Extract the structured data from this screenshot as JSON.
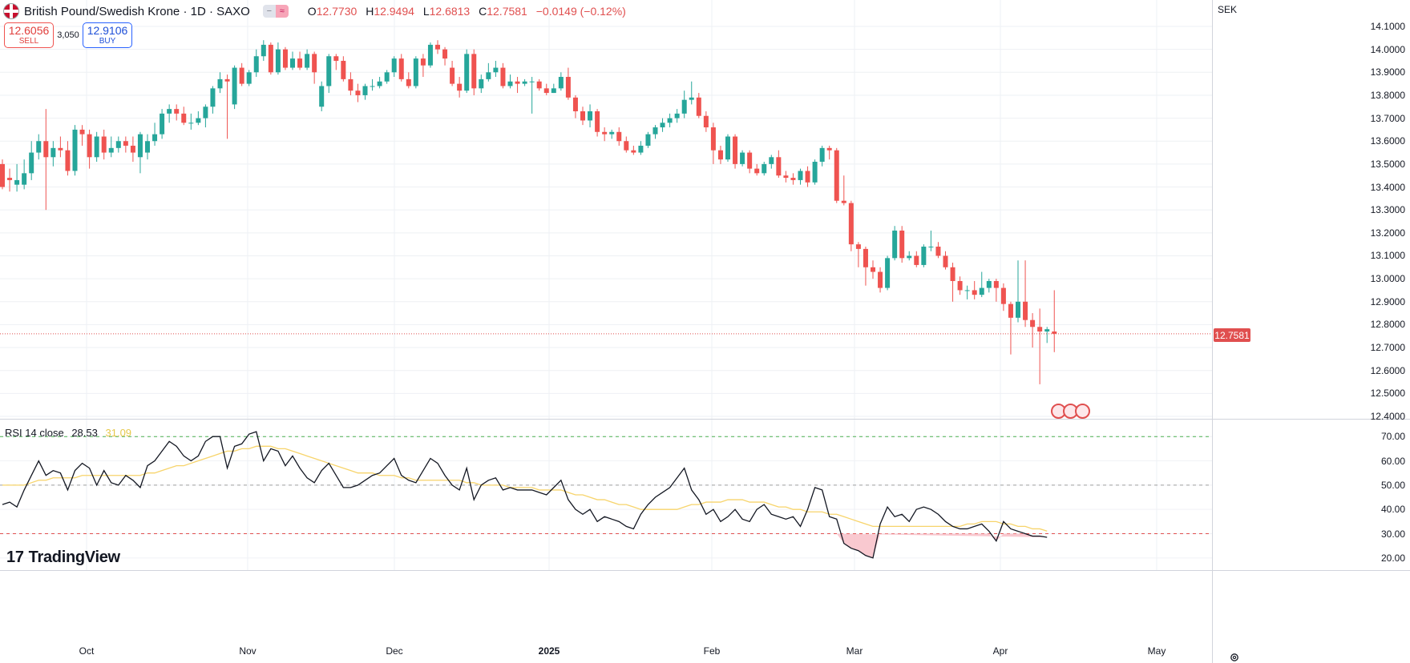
{
  "header": {
    "symbol": "British Pound/Swedish Krone · 1D · SAXO",
    "ohlc": [
      {
        "label": "O",
        "value": "12.7730"
      },
      {
        "label": "H",
        "value": "12.9494"
      },
      {
        "label": "L",
        "value": "12.6813"
      },
      {
        "label": "C",
        "value": "12.7581"
      }
    ],
    "change": "−0.0149 (−0.12%)",
    "pill_left": "−",
    "pill_right": "≈"
  },
  "trade": {
    "sell_price": "12.6056",
    "sell_label": "SELL",
    "spread": "3,050",
    "buy_price": "12.9106",
    "buy_label": "BUY"
  },
  "currency": "SEK",
  "last_price_tag": "12.7581",
  "rsi_header": {
    "label": "RSI 14 close",
    "value": "28.53",
    "ma_value": "31.09"
  },
  "brand": {
    "name": "TradingView",
    "mark": "17"
  },
  "colors": {
    "up": "#26a69a",
    "down": "#ef5350",
    "rsi_line": "#131722",
    "rsi_ma": "#f7d46b",
    "oversold_fill": "#f8bbc4"
  },
  "icons": [
    "flag-icon",
    "gear-icon",
    "event-icon"
  ],
  "chart_data": [
    {
      "type": "candlestick",
      "title": "British Pound/Swedish Krone · 1D · SAXO",
      "y_ticks": [
        "14.1000",
        "14.0000",
        "13.9000",
        "13.8000",
        "13.7000",
        "13.6000",
        "13.5000",
        "13.4000",
        "13.3000",
        "13.2000",
        "13.1000",
        "13.0000",
        "12.9000",
        "12.8000",
        "12.7000",
        "12.6000",
        "12.5000",
        "12.4000"
      ],
      "y_range": [
        12.4,
        14.1
      ],
      "x_ticks": [
        "Oct",
        "Nov",
        "Dec",
        "2025",
        "Feb",
        "Mar",
        "Apr",
        "May"
      ],
      "candles": [
        [
          13.5,
          13.4,
          13.52,
          13.39
        ],
        [
          13.44,
          13.43,
          13.48,
          13.38
        ],
        [
          13.41,
          13.43,
          13.5,
          13.38
        ],
        [
          13.41,
          13.46,
          13.52,
          13.39
        ],
        [
          13.46,
          13.55,
          13.6,
          13.43
        ],
        [
          13.55,
          13.6,
          13.63,
          13.52
        ],
        [
          13.6,
          13.53,
          13.74,
          13.3
        ],
        [
          13.53,
          13.57,
          13.6,
          13.49
        ],
        [
          13.57,
          13.56,
          13.62,
          13.53
        ],
        [
          13.56,
          13.47,
          13.6,
          13.45
        ],
        [
          13.47,
          13.65,
          13.67,
          13.45
        ],
        [
          13.65,
          13.63,
          13.67,
          13.58
        ],
        [
          13.63,
          13.53,
          13.65,
          13.48
        ],
        [
          13.53,
          13.62,
          13.64,
          13.51
        ],
        [
          13.62,
          13.55,
          13.65,
          13.52
        ],
        [
          13.55,
          13.57,
          13.62,
          13.53
        ],
        [
          13.57,
          13.6,
          13.62,
          13.55
        ],
        [
          13.6,
          13.58,
          13.62,
          13.55
        ],
        [
          13.58,
          13.55,
          13.62,
          13.51
        ],
        [
          13.53,
          13.63,
          13.64,
          13.46
        ],
        [
          13.55,
          13.6,
          13.63,
          13.52
        ],
        [
          13.6,
          13.63,
          13.68,
          13.58
        ],
        [
          13.63,
          13.72,
          13.74,
          13.61
        ],
        [
          13.72,
          13.74,
          13.76,
          13.68
        ],
        [
          13.74,
          13.72,
          13.76,
          13.69
        ],
        [
          13.72,
          13.68,
          13.75,
          13.67
        ],
        [
          13.68,
          13.68,
          13.72,
          13.65
        ],
        [
          13.68,
          13.7,
          13.73,
          13.67
        ],
        [
          13.7,
          13.75,
          13.76,
          13.66
        ],
        [
          13.75,
          13.83,
          13.84,
          13.72
        ],
        [
          13.83,
          13.87,
          13.9,
          13.81
        ],
        [
          13.87,
          13.86,
          13.89,
          13.61
        ],
        [
          13.76,
          13.92,
          13.93,
          13.74
        ],
        [
          13.92,
          13.85,
          13.94,
          13.84
        ],
        [
          13.85,
          13.9,
          13.91,
          13.84
        ],
        [
          13.9,
          13.97,
          14.0,
          13.88
        ],
        [
          13.97,
          14.02,
          14.04,
          13.95
        ],
        [
          14.02,
          13.9,
          14.03,
          13.89
        ],
        [
          13.9,
          14.0,
          14.03,
          13.89
        ],
        [
          14.0,
          13.92,
          14.01,
          13.91
        ],
        [
          13.92,
          13.96,
          13.99,
          13.91
        ],
        [
          13.96,
          13.92,
          13.99,
          13.91
        ],
        [
          13.92,
          13.98,
          14.0,
          13.91
        ],
        [
          13.98,
          13.9,
          13.99,
          13.85
        ],
        [
          13.75,
          13.84,
          13.86,
          13.73
        ],
        [
          13.84,
          13.97,
          13.98,
          13.81
        ],
        [
          13.97,
          13.95,
          13.98,
          13.91
        ],
        [
          13.95,
          13.87,
          13.97,
          13.86
        ],
        [
          13.87,
          13.82,
          13.9,
          13.8
        ],
        [
          13.82,
          13.8,
          13.85,
          13.77
        ],
        [
          13.8,
          13.84,
          13.85,
          13.78
        ],
        [
          13.84,
          13.84,
          13.87,
          13.82
        ],
        [
          13.84,
          13.86,
          13.88,
          13.83
        ],
        [
          13.86,
          13.9,
          13.91,
          13.85
        ],
        [
          13.9,
          13.96,
          13.97,
          13.88
        ],
        [
          13.96,
          13.87,
          13.98,
          13.86
        ],
        [
          13.87,
          13.84,
          13.9,
          13.83
        ],
        [
          13.84,
          13.96,
          13.97,
          13.83
        ],
        [
          13.96,
          13.93,
          13.98,
          13.88
        ],
        [
          13.93,
          14.02,
          14.03,
          13.92
        ],
        [
          14.02,
          14.0,
          14.04,
          13.98
        ],
        [
          14.0,
          13.96,
          14.01,
          13.93
        ],
        [
          13.92,
          13.85,
          13.95,
          13.84
        ],
        [
          13.85,
          13.82,
          13.88,
          13.79
        ],
        [
          13.82,
          13.98,
          14.0,
          13.81
        ],
        [
          13.98,
          13.83,
          14.0,
          13.8
        ],
        [
          13.83,
          13.87,
          13.89,
          13.81
        ],
        [
          13.87,
          13.9,
          13.94,
          13.86
        ],
        [
          13.9,
          13.92,
          13.95,
          13.88
        ],
        [
          13.92,
          13.84,
          13.94,
          13.83
        ],
        [
          13.84,
          13.86,
          13.89,
          13.83
        ],
        [
          13.86,
          13.85,
          13.88,
          13.81
        ],
        [
          13.85,
          13.86,
          13.87,
          13.84
        ],
        [
          13.86,
          13.86,
          13.88,
          13.72
        ],
        [
          13.86,
          13.83,
          13.87,
          13.82
        ],
        [
          13.83,
          13.81,
          13.85,
          13.8
        ],
        [
          13.81,
          13.83,
          13.85,
          13.81
        ],
        [
          13.83,
          13.88,
          13.9,
          13.82
        ],
        [
          13.88,
          13.79,
          13.92,
          13.78
        ],
        [
          13.79,
          13.73,
          13.8,
          13.7
        ],
        [
          13.73,
          13.69,
          13.75,
          13.67
        ],
        [
          13.69,
          13.73,
          13.76,
          13.66
        ],
        [
          13.73,
          13.64,
          13.74,
          13.62
        ],
        [
          13.64,
          13.63,
          13.66,
          13.6
        ],
        [
          13.63,
          13.64,
          13.65,
          13.61
        ],
        [
          13.64,
          13.6,
          13.66,
          13.58
        ],
        [
          13.6,
          13.56,
          13.62,
          13.55
        ],
        [
          13.56,
          13.55,
          13.58,
          13.54
        ],
        [
          13.55,
          13.58,
          13.6,
          13.54
        ],
        [
          13.58,
          13.63,
          13.64,
          13.57
        ],
        [
          13.63,
          13.66,
          13.67,
          13.61
        ],
        [
          13.66,
          13.68,
          13.7,
          13.64
        ],
        [
          13.68,
          13.7,
          13.72,
          13.66
        ],
        [
          13.7,
          13.72,
          13.74,
          13.68
        ],
        [
          13.72,
          13.78,
          13.82,
          13.7
        ],
        [
          13.78,
          13.79,
          13.86,
          13.76
        ],
        [
          13.79,
          13.71,
          13.81,
          13.7
        ],
        [
          13.71,
          13.66,
          13.73,
          13.64
        ],
        [
          13.66,
          13.56,
          13.68,
          13.5
        ],
        [
          13.56,
          13.52,
          13.58,
          13.5
        ],
        [
          13.52,
          13.62,
          13.63,
          13.51
        ],
        [
          13.62,
          13.5,
          13.63,
          13.48
        ],
        [
          13.5,
          13.55,
          13.56,
          13.49
        ],
        [
          13.55,
          13.48,
          13.56,
          13.46
        ],
        [
          13.48,
          13.46,
          13.5,
          13.45
        ],
        [
          13.46,
          13.5,
          13.51,
          13.45
        ],
        [
          13.5,
          13.53,
          13.54,
          13.48
        ],
        [
          13.53,
          13.45,
          13.56,
          13.44
        ],
        [
          13.45,
          13.44,
          13.47,
          13.42
        ],
        [
          13.44,
          13.43,
          13.46,
          13.41
        ],
        [
          13.43,
          13.47,
          13.48,
          13.41
        ],
        [
          13.47,
          13.42,
          13.49,
          13.4
        ],
        [
          13.42,
          13.51,
          13.52,
          13.41
        ],
        [
          13.51,
          13.57,
          13.58,
          13.49
        ],
        [
          13.57,
          13.56,
          13.58,
          13.52
        ],
        [
          13.56,
          13.34,
          13.57,
          13.33
        ],
        [
          13.34,
          13.33,
          13.45,
          13.32
        ],
        [
          13.33,
          13.15,
          13.34,
          13.12
        ],
        [
          13.15,
          13.13,
          13.16,
          13.05
        ],
        [
          13.13,
          13.05,
          13.14,
          12.97
        ],
        [
          13.05,
          13.03,
          13.08,
          13.0
        ],
        [
          13.03,
          12.96,
          13.05,
          12.94
        ],
        [
          12.96,
          13.09,
          13.1,
          12.95
        ],
        [
          13.09,
          13.21,
          13.23,
          13.08
        ],
        [
          13.21,
          13.09,
          13.23,
          13.07
        ],
        [
          13.09,
          13.1,
          13.12,
          13.08
        ],
        [
          13.1,
          13.06,
          13.12,
          13.05
        ],
        [
          13.06,
          13.14,
          13.15,
          13.05
        ],
        [
          13.14,
          13.14,
          13.21,
          13.12
        ],
        [
          13.14,
          13.1,
          13.16,
          13.09
        ],
        [
          13.1,
          13.05,
          13.12,
          13.04
        ],
        [
          13.05,
          12.99,
          13.07,
          12.9
        ],
        [
          12.99,
          12.95,
          13.01,
          12.93
        ],
        [
          12.95,
          12.95,
          12.97,
          12.91
        ],
        [
          12.95,
          12.93,
          12.99,
          12.91
        ],
        [
          12.93,
          12.96,
          13.03,
          12.92
        ],
        [
          12.96,
          12.99,
          13.0,
          12.94
        ],
        [
          12.99,
          12.96,
          13.0,
          12.9
        ],
        [
          12.96,
          12.89,
          12.98,
          12.86
        ],
        [
          12.89,
          12.83,
          12.9,
          12.67
        ],
        [
          12.83,
          12.9,
          13.08,
          12.81
        ],
        [
          12.9,
          12.82,
          13.08,
          12.79
        ],
        [
          12.82,
          12.79,
          12.85,
          12.7
        ],
        [
          12.79,
          12.77,
          12.87,
          12.54
        ],
        [
          12.77,
          12.78,
          12.79,
          12.72
        ],
        [
          12.77,
          12.76,
          12.95,
          12.68
        ]
      ]
    },
    {
      "type": "line",
      "title": "RSI 14 close",
      "y_ticks": [
        "70.00",
        "60.00",
        "50.00",
        "40.00",
        "30.00",
        "20.00"
      ],
      "y_range": [
        15,
        76
      ],
      "levels": [
        70,
        50,
        30
      ],
      "series": [
        {
          "name": "RSI 14 close",
          "values": [
            42,
            43,
            41,
            48,
            54,
            60,
            54,
            56,
            55,
            48,
            56,
            59,
            57,
            50,
            56,
            51,
            50,
            54,
            52,
            49,
            58,
            60,
            64,
            68,
            66,
            62,
            60,
            62,
            68,
            70,
            70,
            57,
            66,
            67,
            71,
            72,
            60,
            65,
            64,
            58,
            62,
            57,
            53,
            51,
            56,
            59,
            54,
            49,
            49,
            50,
            52,
            54,
            55,
            58,
            61,
            54,
            52,
            51,
            56,
            61,
            59,
            54,
            50,
            48,
            57,
            44,
            50,
            52,
            53,
            48,
            49,
            48,
            48,
            48,
            47,
            46,
            49,
            52,
            44,
            40,
            38,
            40,
            35,
            37,
            36,
            35,
            33,
            32,
            38,
            42,
            45,
            47,
            49,
            53,
            57,
            48,
            44,
            38,
            40,
            35,
            37,
            40,
            36,
            35,
            40,
            42,
            38,
            37,
            36,
            37,
            33,
            40,
            49,
            48,
            37,
            36,
            26,
            24,
            23,
            21,
            20,
            34,
            41,
            37,
            38,
            35,
            40,
            41,
            40,
            38,
            35,
            33,
            32,
            32,
            33,
            34,
            31,
            27,
            35,
            32,
            31,
            30,
            29,
            29,
            28.53
          ]
        },
        {
          "name": "RSI 14 close MA",
          "values": [
            50,
            50,
            50,
            50,
            51,
            52,
            52,
            53,
            53,
            53,
            53,
            54,
            54,
            54,
            54,
            54,
            54,
            54,
            54,
            54,
            55,
            55,
            56,
            57,
            58,
            58,
            59,
            60,
            61,
            62,
            63,
            64,
            64,
            65,
            65,
            66,
            66,
            66,
            65,
            65,
            64,
            63,
            62,
            61,
            60,
            59,
            58,
            57,
            56,
            55,
            55,
            55,
            54,
            54,
            54,
            53,
            53,
            52,
            52,
            52,
            52,
            52,
            52,
            52,
            51,
            51,
            50,
            50,
            50,
            50,
            49,
            49,
            49,
            49,
            48,
            48,
            48,
            48,
            47,
            46,
            46,
            45,
            44,
            44,
            43,
            42,
            42,
            41,
            40,
            40,
            40,
            40,
            40,
            40,
            41,
            42,
            42,
            43,
            43,
            43,
            44,
            44,
            44,
            43,
            43,
            43,
            42,
            41,
            41,
            40,
            40,
            39,
            39,
            39,
            38,
            38,
            37,
            36,
            35,
            34,
            33,
            33,
            33,
            33,
            33,
            33,
            33,
            33,
            33,
            33,
            33,
            33,
            33,
            34,
            34,
            35,
            35,
            35,
            34,
            34,
            33,
            33,
            32,
            32,
            31.09
          ]
        }
      ]
    }
  ]
}
